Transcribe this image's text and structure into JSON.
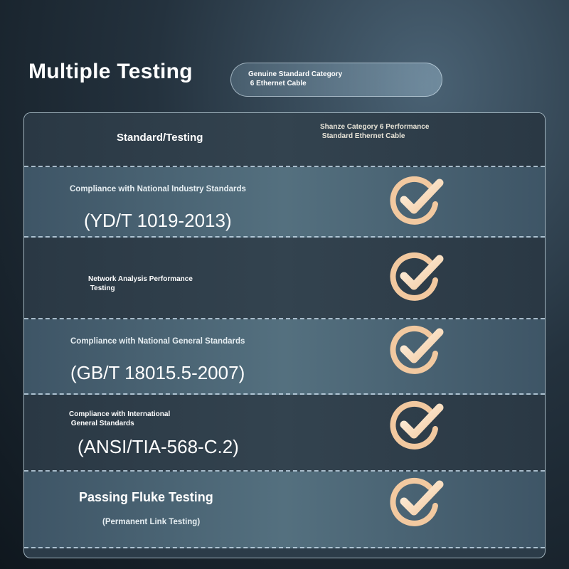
{
  "title": "Multiple Testing",
  "badge": "Genuine Standard Category\n 6 Ethernet Cable",
  "header": {
    "col1": "Standard/Testing",
    "col2": "Shanze Category 6 Performance\n Standard Ethernet Cable"
  },
  "rows": [
    {
      "label": "Compliance with National Industry Standards",
      "code": "(YD/T 1019-2013)",
      "check": "check-icon"
    },
    {
      "label": "Network Analysis Performance\n Testing",
      "check": "check-icon"
    },
    {
      "label": "Compliance with National General Standards",
      "code": "(GB/T 18015.5-2007)",
      "check": "check-icon"
    },
    {
      "label": "Compliance with International\n General Standards",
      "code": "(ANSI/TIA-568-C.2)",
      "check": "check-icon"
    },
    {
      "label": "Passing Fluke Testing",
      "sub": "(Permanent Link Testing)",
      "check": "check-icon"
    }
  ],
  "colors": {
    "check": "#f2c9a0",
    "text": "#ffffff"
  }
}
